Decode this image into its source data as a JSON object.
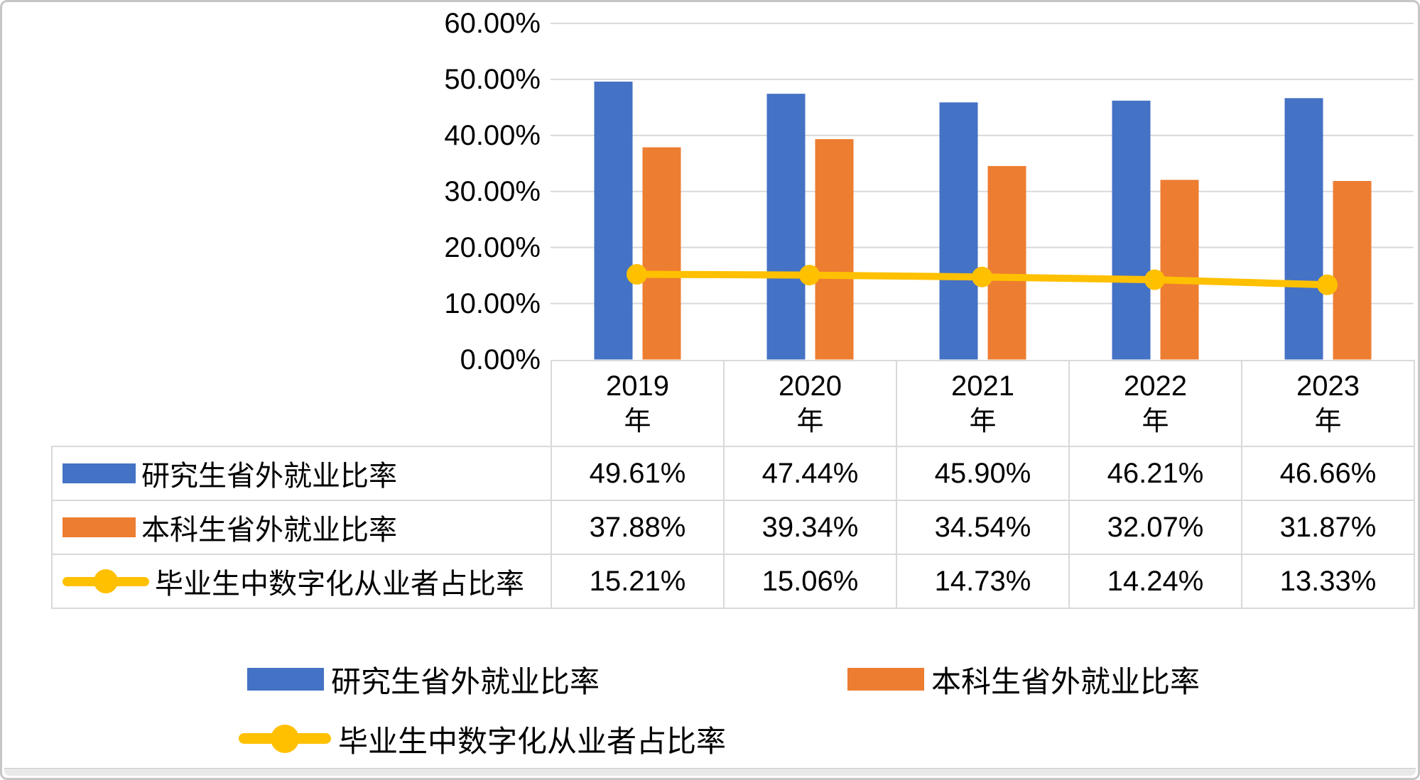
{
  "chart_data": {
    "type": "combo_bar_line",
    "title": "",
    "categories": [
      {
        "year": "2019",
        "unit": "年"
      },
      {
        "year": "2020",
        "unit": "年"
      },
      {
        "year": "2021",
        "unit": "年"
      },
      {
        "year": "2022",
        "unit": "年"
      },
      {
        "year": "2023",
        "unit": "年"
      }
    ],
    "y_axis": {
      "min": 0,
      "max": 60,
      "step": 10,
      "ticks": [
        {
          "value": 60,
          "label": "60.00%"
        },
        {
          "value": 50,
          "label": "50.00%"
        },
        {
          "value": 40,
          "label": "40.00%"
        },
        {
          "value": 30,
          "label": "30.00%"
        },
        {
          "value": 20,
          "label": "20.00%"
        },
        {
          "value": 10,
          "label": "10.00%"
        },
        {
          "value": 0,
          "label": "0.00%"
        }
      ]
    },
    "series": [
      {
        "name": "研究生省外就业比率",
        "chart_type": "bar",
        "color": "#4472C4",
        "values": [
          49.61,
          47.44,
          45.9,
          46.21,
          46.66
        ],
        "display_values": [
          "49.61%",
          "47.44%",
          "45.90%",
          "46.21%",
          "46.66%"
        ]
      },
      {
        "name": "本科生省外就业比率",
        "chart_type": "bar",
        "color": "#ED7D31",
        "values": [
          37.88,
          39.34,
          34.54,
          32.07,
          31.87
        ],
        "display_values": [
          "37.88%",
          "39.34%",
          "34.54%",
          "32.07%",
          "31.87%"
        ]
      },
      {
        "name": "毕业生中数字化从业者占比率",
        "chart_type": "line",
        "color": "#FFC000",
        "values": [
          15.21,
          15.06,
          14.73,
          14.24,
          13.33
        ],
        "display_values": [
          "15.21%",
          "15.06%",
          "14.73%",
          "14.24%",
          "13.33%"
        ]
      }
    ],
    "grid": true,
    "gridline_color": "#D9D9D9",
    "table_border_color": "#D9D9D9",
    "legend_position": "bottom",
    "data_table_shown": true
  }
}
